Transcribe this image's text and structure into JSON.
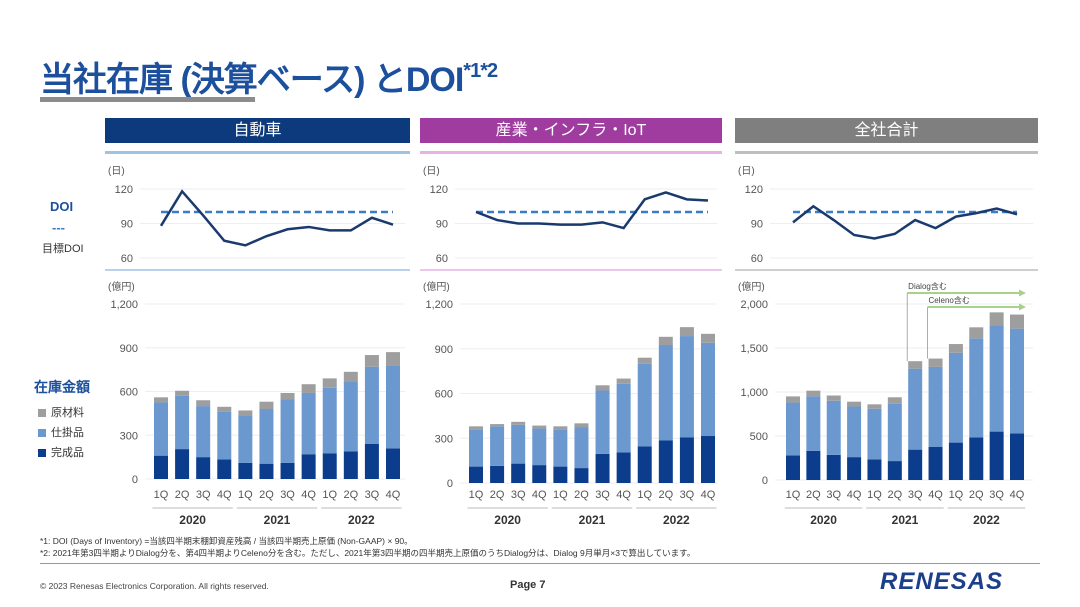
{
  "header": {
    "title": "当社在庫 (決算ベース) とDOI",
    "title_sup": "*1*2"
  },
  "legend": {
    "doi_label": "DOI",
    "target_symbol": "---",
    "target_label": "目標DOI",
    "inventory_label": "在庫金額",
    "items": [
      {
        "label": "原材料",
        "color": "#9e9e9e"
      },
      {
        "label": "仕掛品",
        "color": "#6b98cf"
      },
      {
        "label": "完成品",
        "color": "#0b3d8c"
      }
    ]
  },
  "colors": {
    "finished": "#0b3d8c",
    "wip": "#6b98cf",
    "raw": "#9e9e9e",
    "doi_line": "#1a3a6e",
    "target_line": "#3a7cc8",
    "arrow": "#a9d18e"
  },
  "chart_data": [
    {
      "panel": "自動車",
      "header_color": "#0d3a7d",
      "type": "stacked-bar+line",
      "categories": [
        "1Q",
        "2Q",
        "3Q",
        "4Q",
        "1Q",
        "2Q",
        "3Q",
        "4Q",
        "1Q",
        "2Q",
        "3Q",
        "4Q"
      ],
      "years": [
        "2020",
        "2021",
        "2022"
      ],
      "doi": {
        "unit": "(日)",
        "ticks": [
          "60",
          "90",
          "120"
        ],
        "ylim": [
          60,
          120
        ],
        "target": 100,
        "values": [
          88,
          118,
          97,
          75,
          71,
          79,
          85,
          87,
          84,
          84,
          95,
          89
        ]
      },
      "inventory": {
        "unit": "(億円)",
        "ticks": [
          "0",
          "300",
          "600",
          "900",
          "1,200"
        ],
        "ylim": [
          0,
          1200
        ],
        "series": [
          {
            "name": "完成品",
            "values": [
              160,
              205,
              150,
              135,
              110,
              105,
              110,
              170,
              175,
              190,
              240,
              210
            ]
          },
          {
            "name": "仕掛品",
            "values": [
              365,
              365,
              350,
              325,
              325,
              375,
              435,
              420,
              450,
              475,
              530,
              565
            ]
          },
          {
            "name": "原材料",
            "values": [
              35,
              35,
              40,
              35,
              35,
              50,
              45,
              60,
              65,
              70,
              80,
              95
            ]
          }
        ]
      }
    },
    {
      "panel": "産業・インフラ・IoT",
      "header_color": "#a03ca0",
      "type": "stacked-bar+line",
      "categories": [
        "1Q",
        "2Q",
        "3Q",
        "4Q",
        "1Q",
        "2Q",
        "3Q",
        "4Q",
        "1Q",
        "2Q",
        "3Q",
        "4Q"
      ],
      "years": [
        "2020",
        "2021",
        "2022"
      ],
      "doi": {
        "unit": "(日)",
        "ticks": [
          "60",
          "90",
          "120"
        ],
        "ylim": [
          60,
          120
        ],
        "target": 100,
        "values": [
          100,
          93,
          90,
          90,
          89,
          89,
          91,
          86,
          111,
          117,
          111,
          110
        ]
      },
      "inventory": {
        "unit": "(億円)",
        "ticks": [
          "0",
          "300",
          "600",
          "900",
          "1,200"
        ],
        "ylim": [
          0,
          1200
        ],
        "series": [
          {
            "name": "完成品",
            "values": [
              110,
              115,
              130,
              120,
              110,
              100,
              195,
              205,
              245,
              285,
              305,
              315
            ]
          },
          {
            "name": "仕掛品",
            "values": [
              250,
              265,
              260,
              245,
              250,
              275,
              425,
              460,
              555,
              640,
              680,
              625
            ]
          },
          {
            "name": "原材料",
            "values": [
              20,
              15,
              20,
              20,
              20,
              25,
              35,
              35,
              40,
              55,
              60,
              60
            ]
          }
        ]
      }
    },
    {
      "panel": "全社合計",
      "header_color": "#7f7f7f",
      "type": "stacked-bar+line",
      "categories": [
        "1Q",
        "2Q",
        "3Q",
        "4Q",
        "1Q",
        "2Q",
        "3Q",
        "4Q",
        "1Q",
        "2Q",
        "3Q",
        "4Q"
      ],
      "years": [
        "2020",
        "2021",
        "2022"
      ],
      "doi": {
        "unit": "(日)",
        "ticks": [
          "60",
          "90",
          "120"
        ],
        "ylim": [
          60,
          120
        ],
        "target": 100,
        "values": [
          91,
          105,
          93,
          80,
          77,
          81,
          93,
          86,
          96,
          99,
          103,
          98
        ]
      },
      "inventory": {
        "unit": "(億円)",
        "ticks": [
          "0",
          "500",
          "1,000",
          "1,500",
          "2,000"
        ],
        "ylim": [
          0,
          2000
        ],
        "series": [
          {
            "name": "完成品",
            "values": [
              280,
              330,
              285,
              260,
              235,
              215,
              345,
              375,
              425,
              485,
              550,
              530
            ]
          },
          {
            "name": "仕掛品",
            "values": [
              600,
              620,
              615,
              575,
              575,
              650,
              920,
              910,
              1020,
              1125,
              1210,
              1190
            ]
          },
          {
            "name": "原材料",
            "values": [
              70,
              65,
              60,
              55,
              50,
              75,
              85,
              95,
              100,
              125,
              145,
              160
            ]
          }
        ]
      },
      "annotations": [
        {
          "label": "Dialog含む",
          "from_index": 6
        },
        {
          "label": "Celeno含む",
          "from_index": 7
        }
      ]
    }
  ],
  "notes": [
    "*1: DOI (Days of Inventory) =当該四半期末棚卸資産残高 / 当該四半期売上原価 (Non-GAAP) × 90。",
    "*2: 2021年第3四半期よりDialog分を、第4四半期よりCeleno分を含む。ただし、2021年第3四半期の四半期売上原価のうちDialog分は、Dialog 9月単月×3で算出しています。"
  ],
  "footer": {
    "copyright": "© 2023 Renesas Electronics Corporation. All rights reserved.",
    "page": "Page 7",
    "logo": "RENESAS"
  }
}
